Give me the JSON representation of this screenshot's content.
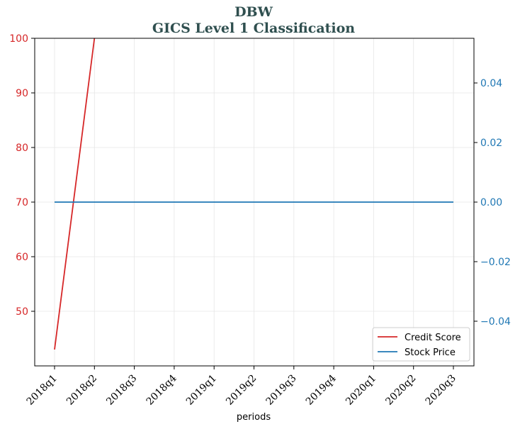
{
  "chart_data": {
    "type": "line",
    "title_line1": "DBW",
    "title_line2": "GICS Level 1 Classification",
    "xlabel": "periods",
    "categories": [
      "2018q1",
      "2018q2",
      "2018q3",
      "2018q4",
      "2019q1",
      "2019q2",
      "2019q3",
      "2019q4",
      "2020q1",
      "2020q2",
      "2020q3"
    ],
    "y_left": {
      "lim": [
        40,
        100
      ],
      "ticks": [
        50,
        60,
        70,
        80,
        90,
        100
      ],
      "color": "#d62728"
    },
    "y_right": {
      "lim": [
        -0.055,
        0.055
      ],
      "ticks": [
        -0.04,
        -0.02,
        0.0,
        0.02,
        0.04
      ],
      "tick_labels": [
        "−0.04",
        "−0.02",
        "0.00",
        "0.02",
        "0.04"
      ],
      "color": "#1f77b4"
    },
    "series": [
      {
        "name": "Credit Score",
        "axis": "left",
        "color": "#d62728",
        "values": [
          43,
          100,
          null,
          null,
          null,
          null,
          null,
          null,
          null,
          null,
          null
        ]
      },
      {
        "name": "Stock Price",
        "axis": "right",
        "color": "#1f77b4",
        "values": [
          0,
          0,
          0,
          0,
          0,
          0,
          0,
          0,
          0,
          0,
          0
        ]
      }
    ],
    "grid": true,
    "legend": "lower-right"
  }
}
